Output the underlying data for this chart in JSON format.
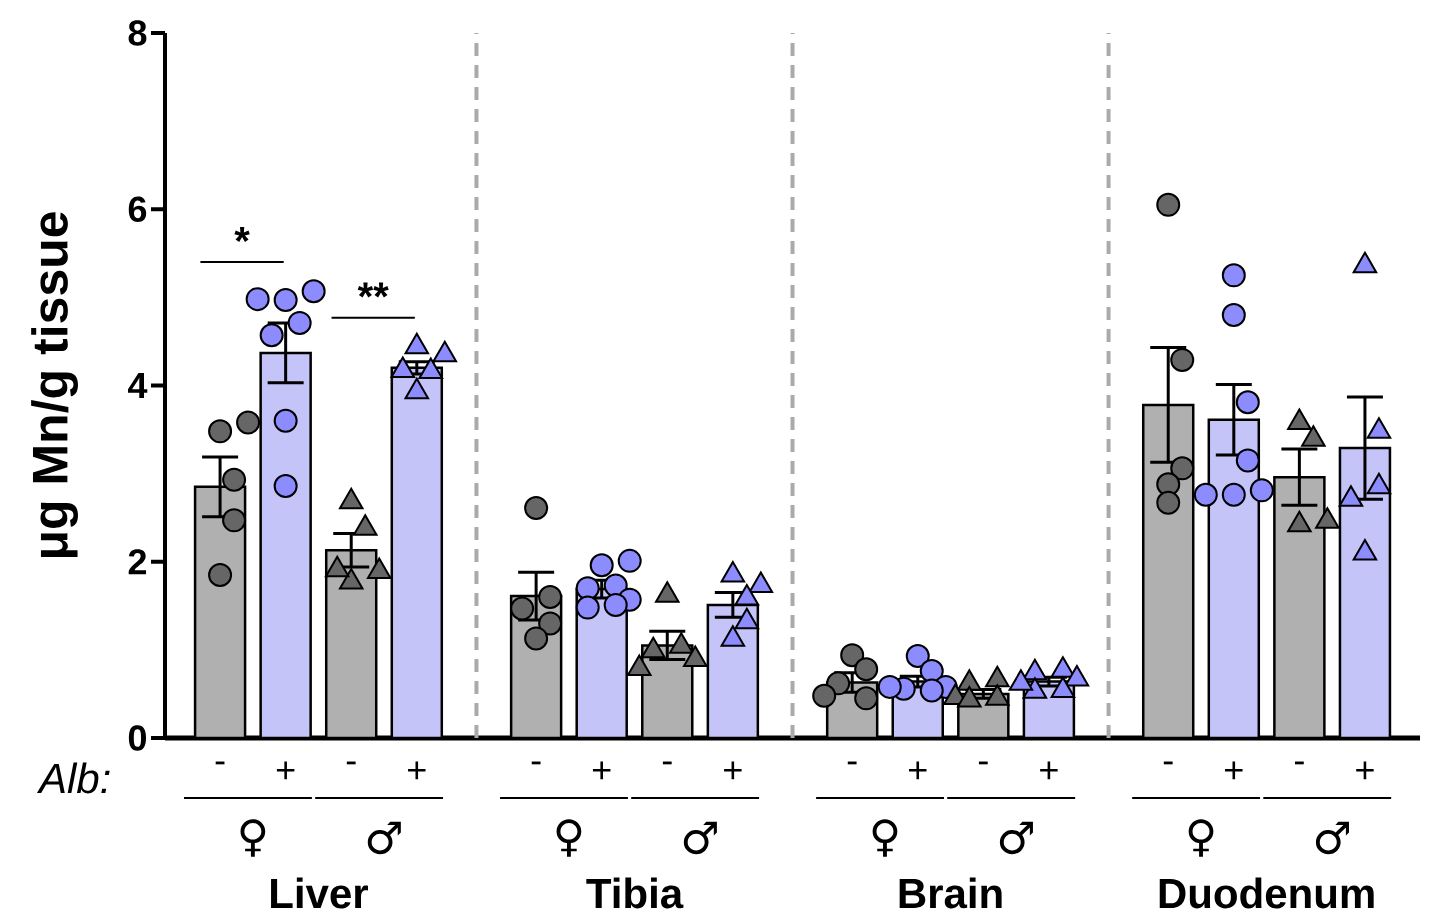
{
  "chart_data": {
    "type": "bar",
    "ylabel": "μg Mn/g tissue",
    "categories": [
      "-",
      "+",
      "-",
      "+",
      "-",
      "+",
      "-",
      "+",
      "-",
      "+",
      "-",
      "+",
      "-",
      "+",
      "-",
      "+"
    ],
    "values": [
      2.85,
      4.37,
      2.13,
      4.2,
      1.61,
      1.69,
      1.05,
      1.51,
      0.63,
      0.64,
      0.5,
      0.64,
      3.78,
      3.61,
      2.96,
      3.29
    ],
    "colors": [
      "#b0b0b0",
      "#c4c4f8",
      "#b0b0b0",
      "#c4c4f8",
      "#b0b0b0",
      "#c4c4f8",
      "#b0b0b0",
      "#c4c4f8",
      "#b0b0b0",
      "#c4c4f8",
      "#b0b0b0",
      "#c4c4f8",
      "#b0b0b0",
      "#c4c4f8",
      "#b0b0b0",
      "#c4c4f8"
    ],
    "errors": [
      0.34,
      0.34,
      0.19,
      0.07,
      0.27,
      0.1,
      0.16,
      0.14,
      0.11,
      0.06,
      0.05,
      0.05,
      0.65,
      0.4,
      0.32,
      0.58
    ],
    "series": [
      {
        "type": "scatter",
        "marker": "circle",
        "color": "#666666",
        "values": [
          3.48,
          null,
          null,
          null,
          2.61,
          null,
          null,
          null,
          0.94,
          null,
          null,
          null,
          6.05,
          null,
          null,
          null
        ]
      },
      {
        "type": "scatter",
        "marker": "circle",
        "color": "#666666",
        "values": [
          3.58,
          null,
          null,
          null,
          1.6,
          null,
          null,
          null,
          0.78,
          null,
          null,
          null,
          4.29,
          null,
          null,
          null
        ]
      },
      {
        "type": "scatter",
        "marker": "circle",
        "color": "#666666",
        "values": [
          2.93,
          null,
          null,
          null,
          1.47,
          null,
          null,
          null,
          0.62,
          null,
          null,
          null,
          3.06,
          null,
          null,
          null
        ]
      },
      {
        "type": "scatter",
        "marker": "circle",
        "color": "#666666",
        "values": [
          2.47,
          null,
          null,
          null,
          1.3,
          null,
          null,
          null,
          0.45,
          null,
          null,
          null,
          2.88,
          null,
          null,
          null
        ]
      },
      {
        "type": "scatter",
        "marker": "circle",
        "color": "#666666",
        "values": [
          1.85,
          null,
          null,
          null,
          1.13,
          null,
          null,
          null,
          0.48,
          null,
          null,
          null,
          2.67,
          null,
          null,
          null
        ]
      },
      {
        "type": "scatter",
        "marker": "circle",
        "color": "#8c8cff",
        "values": [
          null,
          4.97,
          null,
          null,
          null,
          1.96,
          null,
          null,
          null,
          0.93,
          null,
          null,
          null,
          5.25,
          null,
          null
        ]
      },
      {
        "type": "scatter",
        "marker": "circle",
        "color": "#8c8cff",
        "values": [
          null,
          5.07,
          null,
          null,
          null,
          2.01,
          null,
          null,
          null,
          0.76,
          null,
          null,
          null,
          4.8,
          null,
          null
        ]
      },
      {
        "type": "scatter",
        "marker": "circle",
        "color": "#8c8cff",
        "values": [
          null,
          4.98,
          null,
          null,
          null,
          1.73,
          null,
          null,
          null,
          0.56,
          null,
          null,
          null,
          3.81,
          null,
          null
        ]
      },
      {
        "type": "scatter",
        "marker": "circle",
        "color": "#8c8cff",
        "values": [
          null,
          4.71,
          null,
          null,
          null,
          1.7,
          null,
          null,
          null,
          0.58,
          null,
          null,
          null,
          3.15,
          null,
          null
        ]
      },
      {
        "type": "scatter",
        "marker": "circle",
        "color": "#8c8cff",
        "values": [
          null,
          4.57,
          null,
          null,
          null,
          1.57,
          null,
          null,
          null,
          0.58,
          null,
          null,
          null,
          2.76,
          null,
          null
        ]
      },
      {
        "type": "scatter",
        "marker": "circle",
        "color": "#8c8cff",
        "values": [
          null,
          3.6,
          null,
          null,
          null,
          1.48,
          null,
          null,
          null,
          0.54,
          null,
          null,
          null,
          2.81,
          null,
          null
        ]
      },
      {
        "type": "scatter",
        "marker": "circle",
        "color": "#8c8cff",
        "values": [
          null,
          2.86,
          null,
          null,
          null,
          1.51,
          null,
          null,
          null,
          null,
          null,
          null,
          null,
          2.76,
          null,
          null
        ]
      },
      {
        "type": "scatter",
        "marker": "triangle",
        "color": "#666666",
        "values": [
          null,
          null,
          2.68,
          null,
          null,
          null,
          1.62,
          null,
          null,
          null,
          0.66,
          null,
          null,
          null,
          3.39,
          null
        ]
      },
      {
        "type": "scatter",
        "marker": "triangle",
        "color": "#666666",
        "values": [
          null,
          null,
          2.38,
          null,
          null,
          null,
          1.04,
          null,
          null,
          null,
          0.62,
          null,
          null,
          null,
          3.58,
          null
        ]
      },
      {
        "type": "scatter",
        "marker": "triangle",
        "color": "#666666",
        "values": [
          null,
          null,
          1.77,
          null,
          null,
          null,
          0.99,
          null,
          null,
          null,
          0.45,
          null,
          null,
          null,
          2.42,
          null
        ]
      },
      {
        "type": "scatter",
        "marker": "triangle",
        "color": "#666666",
        "values": [
          null,
          null,
          1.89,
          null,
          null,
          null,
          0.89,
          null,
          null,
          null,
          0.46,
          null,
          null,
          null,
          2.46,
          null
        ]
      },
      {
        "type": "scatter",
        "marker": "triangle",
        "color": "#666666",
        "values": [
          null,
          null,
          1.91,
          null,
          null,
          null,
          0.79,
          null,
          null,
          null,
          0.43,
          null,
          null,
          null,
          null,
          null
        ]
      },
      {
        "type": "scatter",
        "marker": "triangle",
        "color": "#8c8cff",
        "values": [
          null,
          null,
          null,
          4.44,
          null,
          null,
          null,
          1.85,
          null,
          null,
          null,
          0.77,
          null,
          null,
          null,
          5.36
        ]
      },
      {
        "type": "scatter",
        "marker": "triangle",
        "color": "#8c8cff",
        "values": [
          null,
          null,
          null,
          4.35,
          null,
          null,
          null,
          1.73,
          null,
          null,
          null,
          0.74,
          null,
          null,
          null,
          3.48
        ]
      },
      {
        "type": "scatter",
        "marker": "triangle",
        "color": "#8c8cff",
        "values": [
          null,
          null,
          null,
          4.16,
          null,
          null,
          null,
          1.59,
          null,
          null,
          null,
          0.67,
          null,
          null,
          null,
          2.85
        ]
      },
      {
        "type": "scatter",
        "marker": "triangle",
        "color": "#8c8cff",
        "values": [
          null,
          null,
          null,
          4.17,
          null,
          null,
          null,
          1.32,
          null,
          null,
          null,
          0.54,
          null,
          null,
          null,
          2.71
        ]
      },
      {
        "type": "scatter",
        "marker": "triangle",
        "color": "#8c8cff",
        "values": [
          null,
          null,
          null,
          3.93,
          null,
          null,
          null,
          1.12,
          null,
          null,
          null,
          0.53,
          null,
          null,
          null,
          2.1
        ]
      },
      {
        "type": "scatter",
        "marker": "triangle",
        "color": "#8c8cff",
        "values": [
          null,
          null,
          null,
          null,
          null,
          null,
          null,
          null,
          null,
          null,
          null,
          0.62,
          null,
          null,
          null,
          null
        ]
      }
    ],
    "ylim": [
      0,
      8
    ],
    "yticks": [
      0,
      2,
      4,
      6,
      8
    ],
    "annotations": [
      "Alb:",
      "♀",
      "♂",
      "♀",
      "♂",
      "♀",
      "♂",
      "♀",
      "♂",
      "Liver",
      "Tibia",
      "Brain",
      "Duodenum",
      "*",
      "**"
    ]
  }
}
